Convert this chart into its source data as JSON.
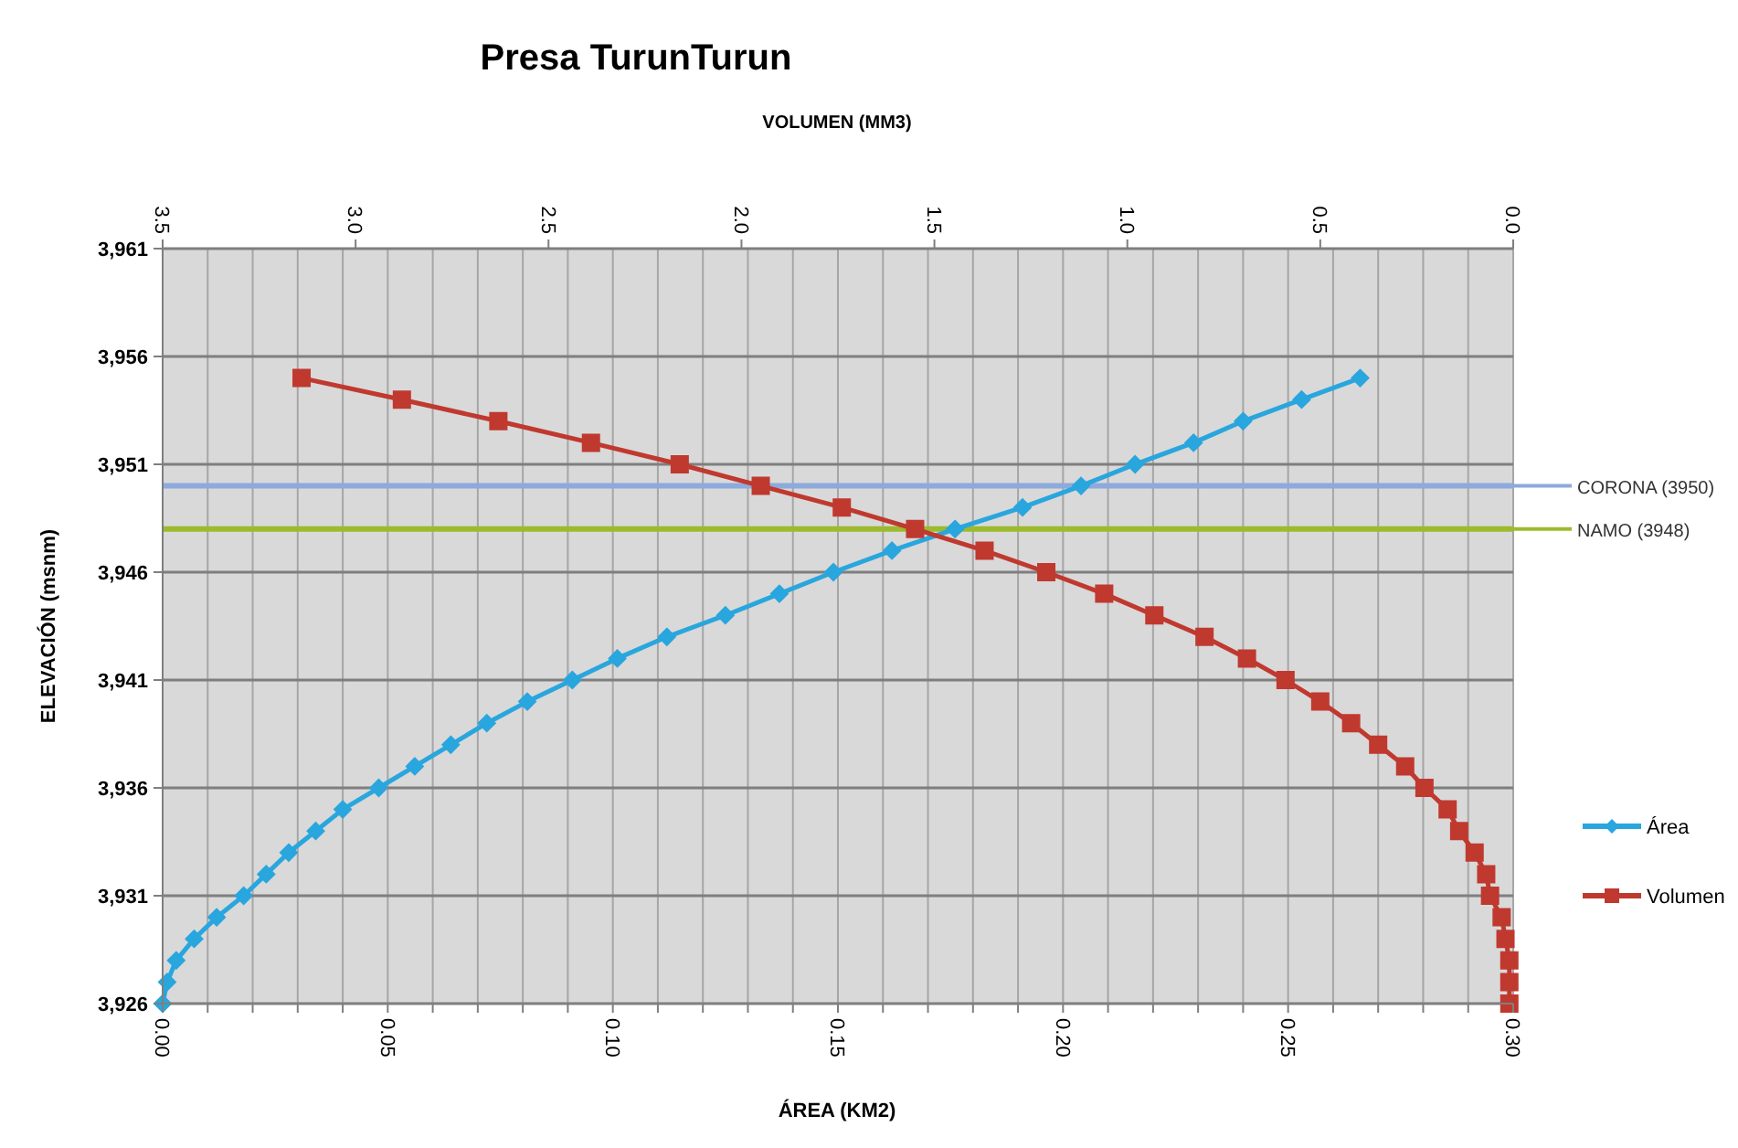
{
  "chart_data": {
    "type": "line",
    "title": "Presa TurunTurun",
    "x2label": "VOLUMEN (MM3)",
    "xlabel": "ÁREA (KM2)",
    "ylabel": "ELEVACIÓN (msnm)",
    "xlim": [
      0,
      0.3
    ],
    "xticks": [
      {
        "value": 0,
        "label": "0.00"
      },
      {
        "value": 0.01,
        "label": null
      },
      {
        "value": 0.02,
        "label": null
      },
      {
        "value": 0.03,
        "label": null
      },
      {
        "value": 0.04,
        "label": null
      },
      {
        "value": 0.05,
        "label": "0.05"
      },
      {
        "value": 0.06,
        "label": null
      },
      {
        "value": 0.07,
        "label": null
      },
      {
        "value": 0.08,
        "label": null
      },
      {
        "value": 0.09,
        "label": null
      },
      {
        "value": 0.1,
        "label": "0.10"
      },
      {
        "value": 0.11,
        "label": null
      },
      {
        "value": 0.12,
        "label": null
      },
      {
        "value": 0.13,
        "label": null
      },
      {
        "value": 0.14,
        "label": null
      },
      {
        "value": 0.15,
        "label": "0.15"
      },
      {
        "value": 0.16,
        "label": null
      },
      {
        "value": 0.17,
        "label": null
      },
      {
        "value": 0.18,
        "label": null
      },
      {
        "value": 0.19,
        "label": null
      },
      {
        "value": 0.2,
        "label": "0.20"
      },
      {
        "value": 0.21,
        "label": null
      },
      {
        "value": 0.22,
        "label": null
      },
      {
        "value": 0.23,
        "label": null
      },
      {
        "value": 0.24,
        "label": null
      },
      {
        "value": 0.25,
        "label": "0.25"
      },
      {
        "value": 0.26,
        "label": null
      },
      {
        "value": 0.27,
        "label": null
      },
      {
        "value": 0.28,
        "label": null
      },
      {
        "value": 0.29,
        "label": null
      },
      {
        "value": 0.3,
        "label": "0.30"
      }
    ],
    "x2lim": [
      3.5,
      0
    ],
    "x2ticks": [
      3.5,
      {
        "value": 3,
        "label": "3.0"
      },
      2.5,
      {
        "value": 2,
        "label": "2.0"
      },
      1.5,
      {
        "value": 1,
        "label": "1.0"
      },
      0.5,
      {
        "value": 0,
        "label": "0.0"
      }
    ],
    "ylim": [
      3926,
      3961
    ],
    "yticks": [
      {
        "value": 3926,
        "label": "3,926"
      },
      {
        "value": 3931,
        "label": "3,931"
      },
      {
        "value": 3936,
        "label": "3,936"
      },
      {
        "value": 3941,
        "label": "3,941"
      },
      {
        "value": 3946,
        "label": "3,946"
      },
      {
        "value": 3951,
        "label": "3,951"
      },
      {
        "value": 3956,
        "label": "3,956"
      },
      {
        "value": 3961,
        "label": "3,961"
      }
    ],
    "grid": true,
    "legend": "right",
    "series": [
      {
        "name": "Área",
        "color": "#29a6de",
        "marker": "diamond",
        "x": [
          0,
          0.001,
          0.003,
          0.007,
          0.012,
          0.018,
          0.023,
          0.028,
          0.034,
          0.04,
          0.048,
          0.056,
          0.064,
          0.072,
          0.081,
          0.091,
          0.101,
          0.112,
          0.125,
          0.137,
          0.149,
          0.162,
          0.176,
          0.191,
          0.204,
          0.216,
          0.229,
          0.24,
          0.253,
          0.266
        ],
        "values": [
          3926,
          3927,
          3928,
          3929,
          3930,
          3931,
          3932,
          3933,
          3934,
          3935,
          3936,
          3937,
          3938,
          3939,
          3940,
          3941,
          3942,
          3943,
          3944,
          3945,
          3946,
          3947,
          3948,
          3949,
          3950,
          3951,
          3952,
          3953,
          3954,
          3955
        ]
      },
      {
        "name": "Volumen",
        "color": "#c0392f",
        "marker": "square",
        "axis": "x2",
        "x": [
          0.01,
          0.01,
          0.01,
          0.02,
          0.03,
          0.06,
          0.07,
          0.1,
          0.14,
          0.17,
          0.23,
          0.28,
          0.35,
          0.42,
          0.5,
          0.59,
          0.69,
          0.8,
          0.93,
          1.06,
          1.21,
          1.37,
          1.55,
          1.74,
          1.95,
          2.16,
          2.39,
          2.63,
          2.88,
          3.14
        ],
        "values": [
          3926,
          3927,
          3928,
          3929,
          3930,
          3931,
          3932,
          3933,
          3934,
          3935,
          3936,
          3937,
          3938,
          3939,
          3940,
          3941,
          3942,
          3943,
          3944,
          3945,
          3946,
          3947,
          3948,
          3949,
          3950,
          3951,
          3952,
          3953,
          3954,
          3955
        ]
      }
    ],
    "ref_lines": [
      {
        "axis": "y",
        "value": 3950,
        "label": "CORONA (3950)",
        "color": "#8eaadc"
      },
      {
        "axis": "y",
        "value": 3948,
        "label": "NAMO (3948)",
        "color": "#9bbb2c"
      }
    ]
  }
}
